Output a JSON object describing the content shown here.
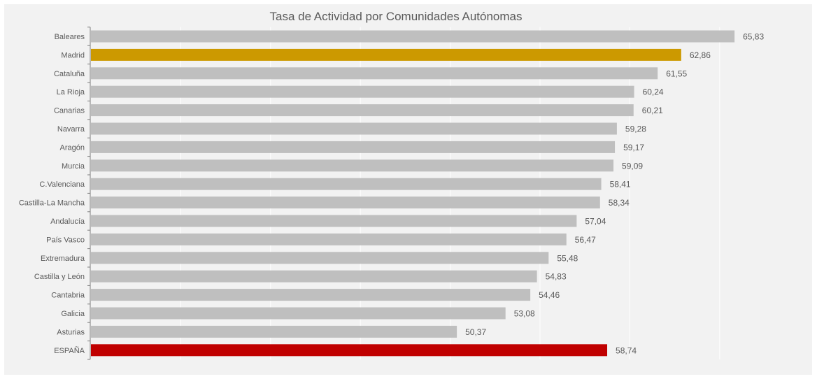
{
  "chart_data": {
    "type": "bar",
    "orientation": "horizontal",
    "title": "Tasa de Actividad por Comunidades Autónomas",
    "categories": [
      "Baleares",
      "Madrid",
      "Cataluña",
      "La Rioja",
      "Canarias",
      "Navarra",
      "Aragón",
      "Murcia",
      "C.Valenciana",
      "Castilla-La Mancha",
      "Andalucía",
      "País Vasco",
      "Extremadura",
      "Castilla y León",
      "Cantabria",
      "Galicia",
      "Asturias",
      "ESPAÑA"
    ],
    "values": [
      65.83,
      62.86,
      61.55,
      60.24,
      60.21,
      59.28,
      59.17,
      59.09,
      58.41,
      58.34,
      57.04,
      56.47,
      55.48,
      54.83,
      54.46,
      53.08,
      50.37,
      58.74
    ],
    "data_labels": [
      "65,83",
      "62,86",
      "61,55",
      "60,24",
      "60,21",
      "59,28",
      "59,17",
      "59,09",
      "58,41",
      "58,34",
      "57,04",
      "56,47",
      "55,48",
      "54,83",
      "54,46",
      "53,08",
      "50,37",
      "58,74"
    ],
    "xlim": [
      30,
      68
    ],
    "grid": true,
    "legend": "none",
    "colors": {
      "default": "#bfbfbf",
      "Madrid": "#cc9900",
      "ESPAÑA": "#c00000",
      "gridline": "#ffffff",
      "label": "#595959",
      "background": "#f2f2f2"
    }
  }
}
